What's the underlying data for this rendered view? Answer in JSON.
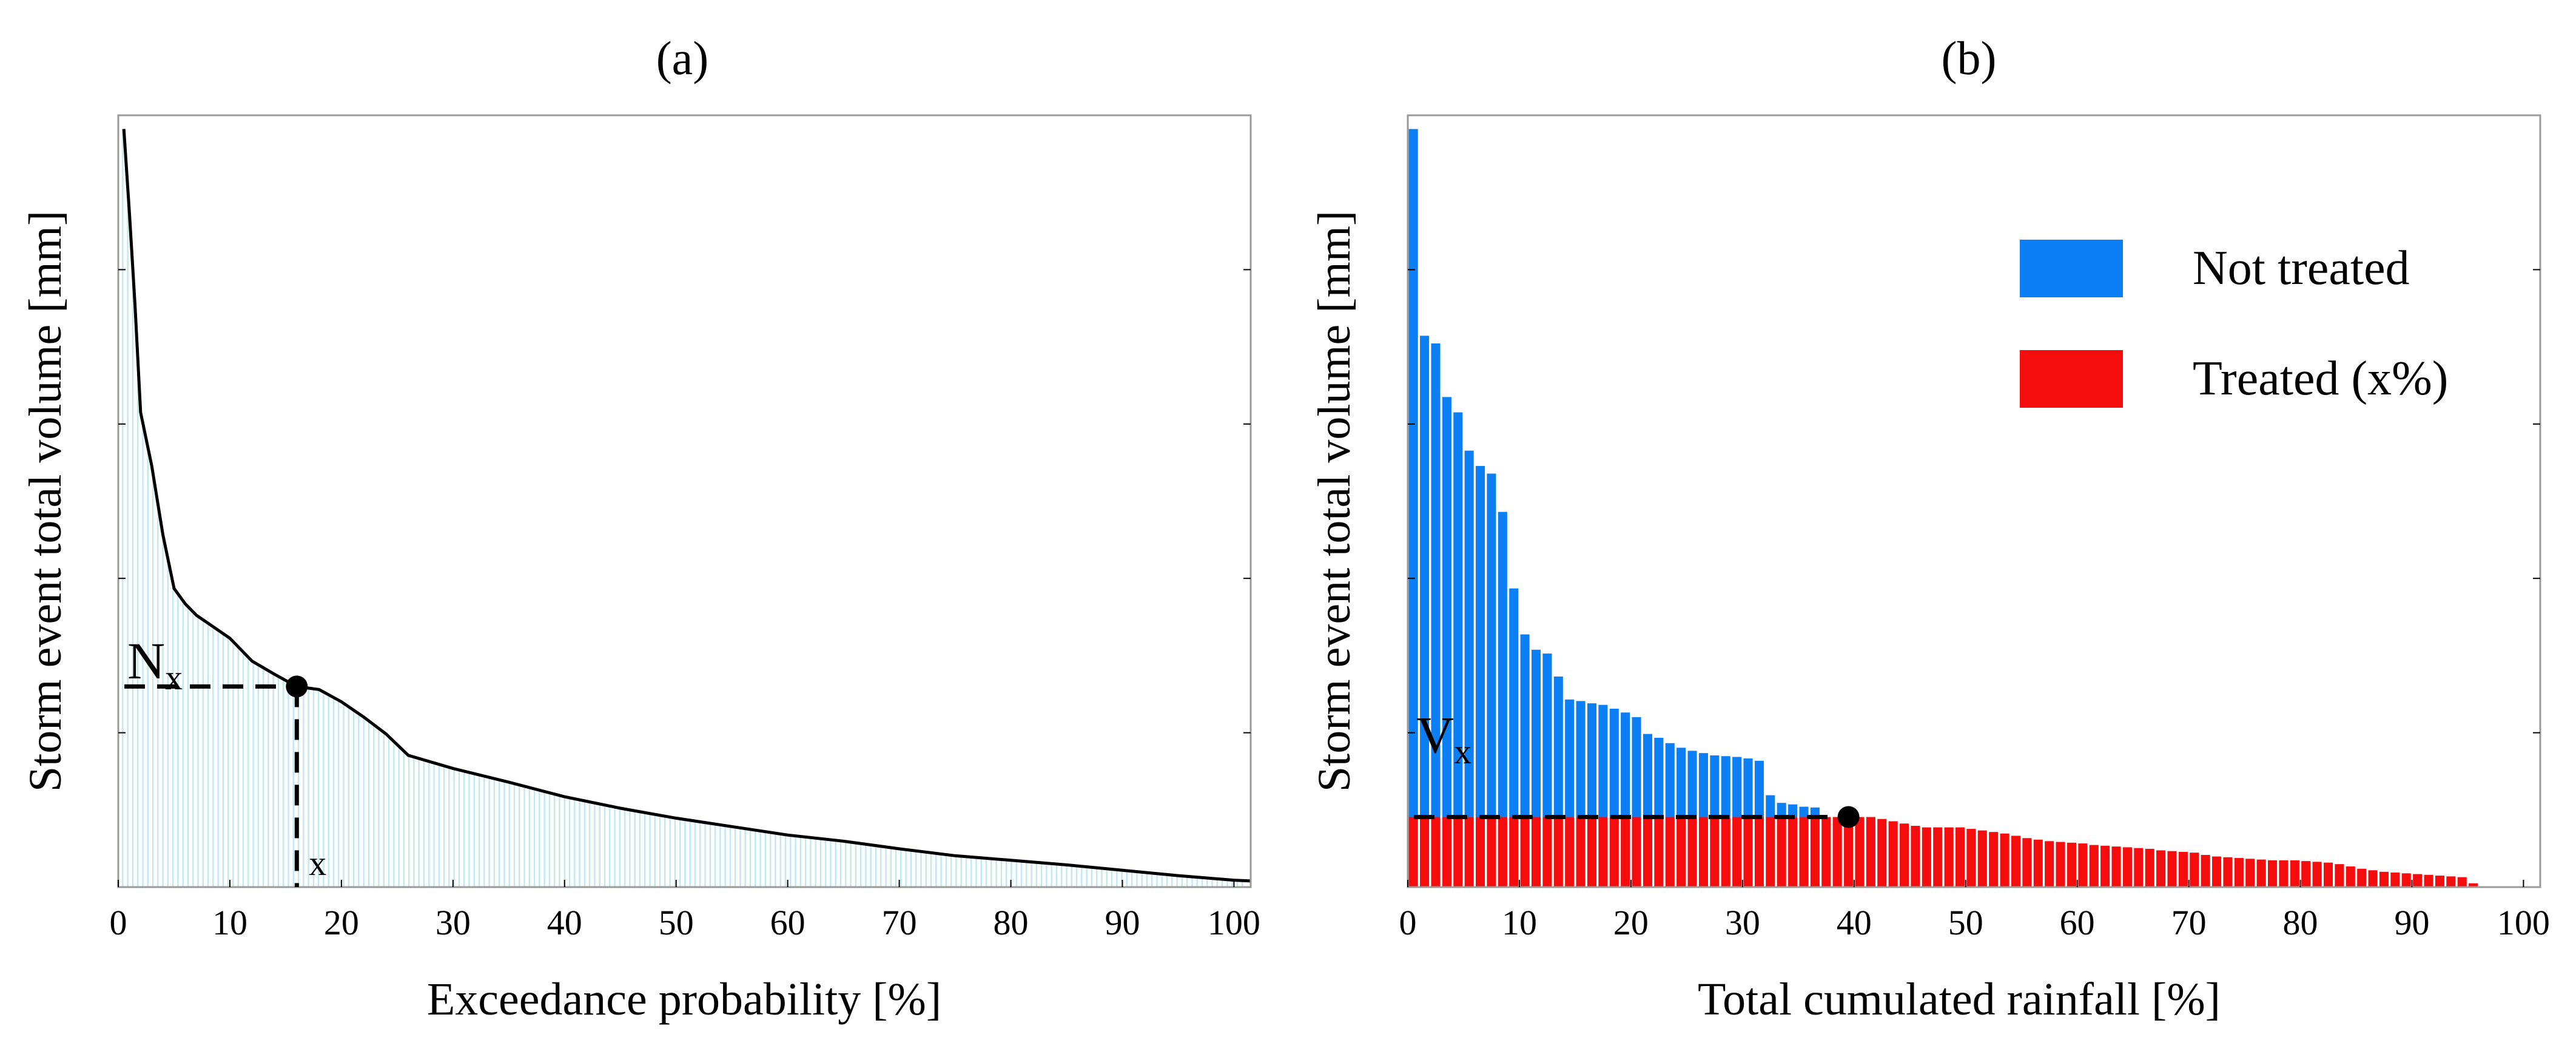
{
  "figure": {
    "panel_a_label": "(a)",
    "panel_b_label": "(b)"
  },
  "chart_data": [
    {
      "type": "bar",
      "variant": "exceedance-curve",
      "title": "(a)",
      "xlabel": "Exceedance probability [%]",
      "ylabel": "Storm event total volume [mm]",
      "xlim": [
        0,
        101.5
      ],
      "ylim": [
        0,
        1
      ],
      "y_ticks_labeled": false,
      "xticks": [
        0,
        10,
        20,
        30,
        40,
        50,
        60,
        70,
        80,
        90,
        100
      ],
      "xtick_labels": [
        "0",
        "10",
        "20",
        "30",
        "40",
        "50",
        "60",
        "70",
        "80",
        "90",
        "100"
      ],
      "bar_color": "#bfe8f2",
      "curve_color": "#000000",
      "curve": {
        "x": [
          0.5,
          1,
          1.5,
          2,
          3,
          4,
          5,
          6,
          7,
          8,
          10,
          12,
          14,
          16,
          18,
          20,
          22,
          24,
          26,
          30,
          35,
          40,
          45,
          50,
          55,
          60,
          65,
          70,
          75,
          80,
          85,
          90,
          95,
          100,
          101.5
        ],
        "y": [
          0.99,
          0.88,
          0.76,
          0.62,
          0.55,
          0.46,
          0.39,
          0.37,
          0.355,
          0.345,
          0.325,
          0.295,
          0.278,
          0.262,
          0.258,
          0.242,
          0.222,
          0.2,
          0.172,
          0.155,
          0.137,
          0.118,
          0.103,
          0.09,
          0.079,
          0.068,
          0.06,
          0.05,
          0.041,
          0.035,
          0.029,
          0.022,
          0.015,
          0.009,
          0.008
        ]
      },
      "marker": {
        "x": 16,
        "y": 0.262,
        "label_main": "N",
        "label_sub": "x",
        "x_label": "x"
      }
    },
    {
      "type": "bar",
      "variant": "cumulated-rainfall",
      "title": "(b)",
      "xlabel": "Total cumulated rainfall [%]",
      "ylabel": "Storm event total volume [mm]",
      "xlim": [
        0,
        101.5
      ],
      "ylim": [
        0,
        1
      ],
      "y_ticks_labeled": false,
      "xticks": [
        0,
        10,
        20,
        30,
        40,
        50,
        60,
        70,
        80,
        90,
        100
      ],
      "xtick_labels": [
        "0",
        "10",
        "20",
        "30",
        "40",
        "50",
        "60",
        "70",
        "80",
        "90",
        "100"
      ],
      "bar_width": 0.82,
      "x": [
        0.5,
        1.5,
        2.5,
        3.5,
        4.5,
        5.5,
        6.5,
        7.5,
        8.5,
        9.5,
        10.5,
        11.5,
        12.5,
        13.5,
        14.5,
        15.5,
        16.5,
        17.5,
        18.5,
        19.5,
        20.5,
        21.5,
        22.5,
        23.5,
        24.5,
        25.5,
        26.5,
        27.5,
        28.5,
        29.5,
        30.5,
        31.5,
        32.5,
        33.5,
        34.5,
        35.5,
        36.5,
        37.5,
        38.5,
        39.5,
        40.5,
        41.5,
        42.5,
        43.5,
        44.5,
        45.5,
        46.5,
        47.5,
        48.5,
        49.5,
        50.5,
        51.5,
        52.5,
        53.5,
        54.5,
        55.5,
        56.5,
        57.5,
        58.5,
        59.5,
        60.5,
        61.5,
        62.5,
        63.5,
        64.5,
        65.5,
        66.5,
        67.5,
        68.5,
        69.5,
        70.5,
        71.5,
        72.5,
        73.5,
        74.5,
        75.5,
        76.5,
        77.5,
        78.5,
        79.5,
        80.5,
        81.5,
        82.5,
        83.5,
        84.5,
        85.5,
        86.5,
        87.5,
        88.5,
        89.5,
        90.5,
        91.5,
        92.5,
        93.5,
        94.5,
        95.5
      ],
      "values": [
        0.99,
        0.72,
        0.71,
        0.64,
        0.62,
        0.57,
        0.55,
        0.54,
        0.49,
        0.39,
        0.33,
        0.31,
        0.305,
        0.275,
        0.245,
        0.243,
        0.24,
        0.238,
        0.233,
        0.228,
        0.222,
        0.2,
        0.195,
        0.188,
        0.182,
        0.178,
        0.175,
        0.172,
        0.171,
        0.17,
        0.168,
        0.165,
        0.12,
        0.11,
        0.108,
        0.105,
        0.104,
        0.0915,
        0.0915,
        0.0915,
        0.0915,
        0.0915,
        0.089,
        0.086,
        0.083,
        0.08,
        0.078,
        0.078,
        0.078,
        0.078,
        0.076,
        0.074,
        0.072,
        0.07,
        0.067,
        0.064,
        0.062,
        0.06,
        0.059,
        0.058,
        0.057,
        0.055,
        0.054,
        0.053,
        0.052,
        0.051,
        0.05,
        0.048,
        0.047,
        0.046,
        0.045,
        0.042,
        0.04,
        0.039,
        0.038,
        0.037,
        0.036,
        0.035,
        0.035,
        0.035,
        0.034,
        0.033,
        0.032,
        0.03,
        0.027,
        0.024,
        0.022,
        0.02,
        0.019,
        0.018,
        0.017,
        0.016,
        0.015,
        0.014,
        0.013,
        0.005
      ],
      "threshold": 0.0915,
      "series": [
        {
          "name": "Not treated",
          "color": "#0d7ff4"
        },
        {
          "name": "Treated (x%)",
          "color": "#f50d0d"
        }
      ],
      "legend_position": "top-right",
      "marker": {
        "x": 39.5,
        "y": 0.0915,
        "label_main": "V",
        "label_sub": "x"
      }
    }
  ]
}
